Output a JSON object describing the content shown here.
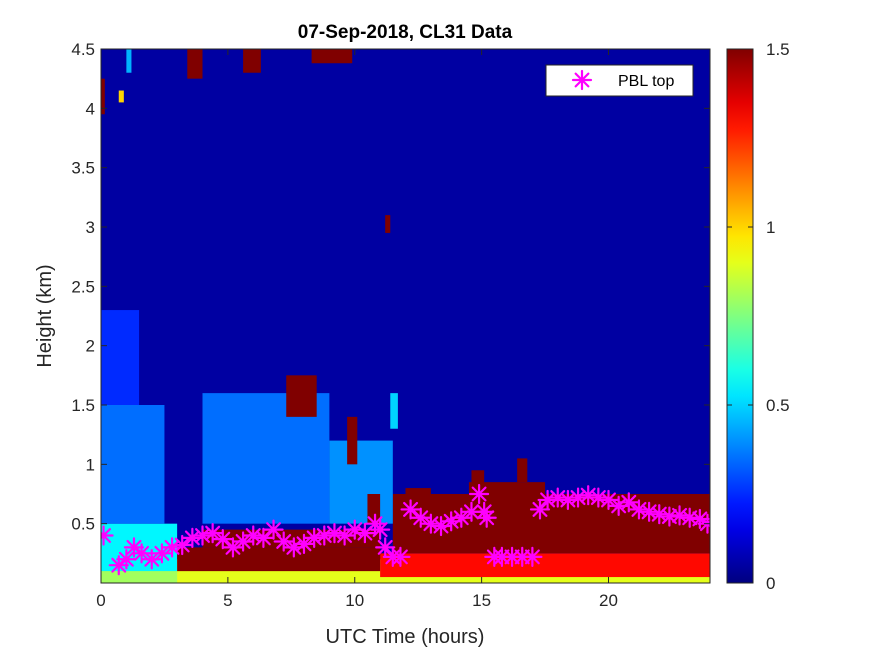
{
  "chart_data": {
    "type": "heatmap",
    "title": "07-Sep-2018, CL31 Data",
    "xlabel": "UTC Time (hours)",
    "ylabel": "Height (km)",
    "xlim": [
      0,
      24
    ],
    "ylim": [
      0,
      4.5
    ],
    "xticks": [
      0,
      5,
      10,
      15,
      20
    ],
    "yticks": [
      0.5,
      1,
      1.5,
      2,
      2.5,
      3,
      3.5,
      4,
      4.5
    ],
    "colorbar": {
      "range": [
        0,
        1.5
      ],
      "ticks": [
        0,
        0.5,
        1,
        1.5
      ],
      "colormap": "jet"
    },
    "legend": {
      "location": "top-right",
      "entries": [
        {
          "label": "PBL top",
          "marker": "asterisk",
          "color": "#ff00ff"
        }
      ]
    },
    "background_value": 0.05,
    "features": [
      {
        "t0": 0.0,
        "t1": 24.0,
        "h0": 0.0,
        "h1": 0.2,
        "value": 0.9
      },
      {
        "t0": 0.0,
        "t1": 3.0,
        "h0": 0.0,
        "h1": 0.1,
        "value": 0.8
      },
      {
        "t0": 3.5,
        "t1": 11.0,
        "h0": 0.0,
        "h1": 0.1,
        "value": 0.9
      },
      {
        "t0": 11.0,
        "t1": 24.0,
        "h0": 0.05,
        "h1": 0.25,
        "value": 1.3
      },
      {
        "t0": 0.0,
        "t1": 3.0,
        "h0": 0.1,
        "h1": 0.5,
        "value": 0.55
      },
      {
        "t0": 0.0,
        "t1": 2.5,
        "h0": 0.5,
        "h1": 1.5,
        "value": 0.35
      },
      {
        "t0": 0.0,
        "t1": 1.5,
        "h0": 1.5,
        "h1": 2.3,
        "value": 0.25
      },
      {
        "t0": 3.0,
        "t1": 11.0,
        "h0": 0.1,
        "h1": 0.3,
        "value": 1.5
      },
      {
        "t0": 4.0,
        "t1": 11.0,
        "h0": 0.3,
        "h1": 0.45,
        "value": 1.5
      },
      {
        "t0": 11.5,
        "t1": 24.0,
        "h0": 0.25,
        "h1": 0.75,
        "value": 1.5
      },
      {
        "t0": 14.5,
        "t1": 17.5,
        "h0": 0.75,
        "h1": 0.85,
        "value": 1.5
      },
      {
        "t0": 16.4,
        "t1": 16.8,
        "h0": 0.85,
        "h1": 1.05,
        "value": 1.5
      },
      {
        "t0": 14.6,
        "t1": 15.1,
        "h0": 0.8,
        "h1": 0.95,
        "value": 1.5
      },
      {
        "t0": 4.0,
        "t1": 9.0,
        "h0": 0.5,
        "h1": 1.6,
        "value": 0.35
      },
      {
        "t0": 9.0,
        "t1": 11.5,
        "h0": 0.5,
        "h1": 1.2,
        "value": 0.4
      },
      {
        "t0": 7.3,
        "t1": 8.5,
        "h0": 1.4,
        "h1": 1.75,
        "value": 1.5
      },
      {
        "t0": 9.7,
        "t1": 10.1,
        "h0": 1.0,
        "h1": 1.4,
        "value": 1.5
      },
      {
        "t0": 11.4,
        "t1": 11.7,
        "h0": 1.3,
        "h1": 1.6,
        "value": 0.5
      },
      {
        "t0": 11.2,
        "t1": 11.4,
        "h0": 2.95,
        "h1": 3.1,
        "value": 1.5
      },
      {
        "t0": 3.4,
        "t1": 4.0,
        "h0": 4.25,
        "h1": 4.5,
        "value": 1.5
      },
      {
        "t0": 5.6,
        "t1": 6.3,
        "h0": 4.3,
        "h1": 4.5,
        "value": 1.5
      },
      {
        "t0": 8.3,
        "t1": 9.9,
        "h0": 4.38,
        "h1": 4.5,
        "value": 1.5
      },
      {
        "t0": 0.0,
        "t1": 0.15,
        "h0": 3.95,
        "h1": 4.25,
        "value": 1.5
      },
      {
        "t0": 0.7,
        "t1": 0.9,
        "h0": 4.05,
        "h1": 4.15,
        "value": 1.0
      },
      {
        "t0": 1.0,
        "t1": 1.2,
        "h0": 4.3,
        "h1": 4.5,
        "value": 0.45
      },
      {
        "t0": 10.5,
        "t1": 11.0,
        "h0": 0.5,
        "h1": 0.75,
        "value": 1.5
      },
      {
        "t0": 12.0,
        "t1": 13.0,
        "h0": 0.6,
        "h1": 0.8,
        "value": 1.5
      }
    ],
    "series": [
      {
        "name": "PBL top",
        "x": [
          0.1,
          0.7,
          1.0,
          1.3,
          1.6,
          2.0,
          2.4,
          2.8,
          3.2,
          3.6,
          4.0,
          4.4,
          4.8,
          5.2,
          5.6,
          6.0,
          6.4,
          6.8,
          7.2,
          7.6,
          8.0,
          8.4,
          8.8,
          9.2,
          9.6,
          10.0,
          10.4,
          10.8,
          11.0,
          11.2,
          11.5,
          11.8,
          12.2,
          12.6,
          13.0,
          13.4,
          13.8,
          14.2,
          14.6,
          14.9,
          15.1,
          15.2,
          15.5,
          15.8,
          16.2,
          16.6,
          17.0,
          17.3,
          17.6,
          18.0,
          18.4,
          18.8,
          19.2,
          19.6,
          20.0,
          20.4,
          20.8,
          21.2,
          21.6,
          22.0,
          22.4,
          22.8,
          23.2,
          23.6,
          23.9
        ],
        "y": [
          0.4,
          0.15,
          0.2,
          0.3,
          0.25,
          0.2,
          0.25,
          0.3,
          0.32,
          0.38,
          0.4,
          0.42,
          0.37,
          0.3,
          0.35,
          0.4,
          0.38,
          0.45,
          0.35,
          0.3,
          0.33,
          0.38,
          0.4,
          0.42,
          0.4,
          0.45,
          0.42,
          0.5,
          0.45,
          0.3,
          0.22,
          0.22,
          0.62,
          0.55,
          0.5,
          0.48,
          0.52,
          0.55,
          0.6,
          0.75,
          0.6,
          0.55,
          0.22,
          0.22,
          0.22,
          0.22,
          0.22,
          0.62,
          0.7,
          0.72,
          0.7,
          0.72,
          0.74,
          0.72,
          0.7,
          0.65,
          0.68,
          0.62,
          0.6,
          0.58,
          0.56,
          0.57,
          0.55,
          0.54,
          0.5
        ]
      }
    ]
  }
}
